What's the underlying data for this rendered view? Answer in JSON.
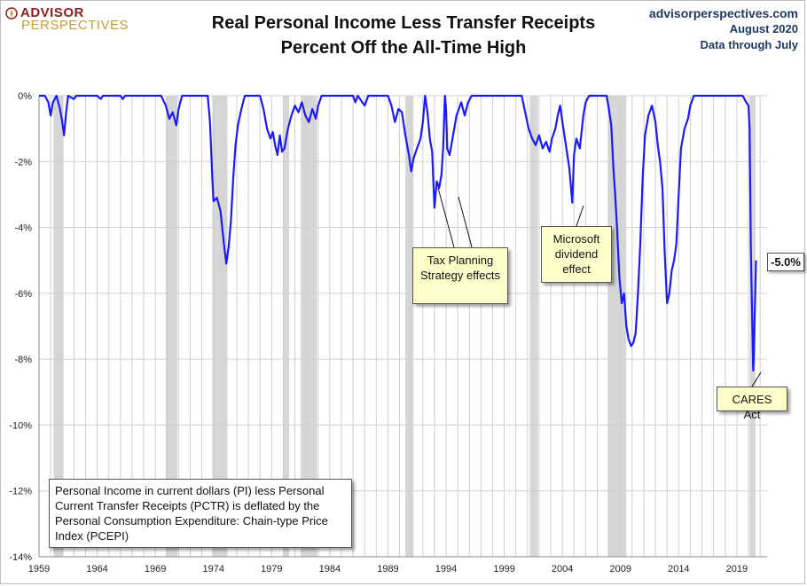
{
  "logo": {
    "line1": "ADVISOR",
    "line2": "PERSPECTIVES"
  },
  "header": {
    "title_line1": "Real Personal Income Less Transfer Receipts",
    "title_line2": "Percent Off the All-Time High"
  },
  "source": {
    "site": "advisorperspectives.com",
    "date": "August 2020",
    "data_note": "Data through July"
  },
  "colors": {
    "line": "#1a1aff",
    "recession": "#d6d6d6",
    "grid": "#cfcfcf",
    "note_bg": "#ffffcc"
  },
  "annotations": {
    "tax": "Tax Planning Strategy effects",
    "msft": "Microsoft dividend effect",
    "cares": "CARES Act",
    "last_value": "-5.0%",
    "definition": "Personal Income in current dollars  (PI) less Personal Current Transfer Receipts (PCTR) is deflated by the Personal Consumption Expenditure: Chain-type Price Index (PCEPI)"
  },
  "chart_data": {
    "type": "line",
    "title": "Real Personal Income Less Transfer Receipts",
    "subtitle": "Percent Off the All-Time High",
    "xlabel": "",
    "ylabel": "",
    "xlim": [
      1959,
      2021.6
    ],
    "ylim": [
      -14,
      0
    ],
    "x_ticks": [
      1959,
      1964,
      1969,
      1974,
      1979,
      1984,
      1989,
      1994,
      1999,
      2004,
      2009,
      2014,
      2019
    ],
    "y_ticks": [
      0,
      -2,
      -4,
      -6,
      -8,
      -10,
      -12,
      -14
    ],
    "y_tick_labels": [
      "0%",
      "-2%",
      "-4%",
      "-6%",
      "-8%",
      "-10%",
      "-12%",
      "-14%"
    ],
    "grid": true,
    "recessions": [
      [
        1960.25,
        1961.1
      ],
      [
        1969.9,
        1970.9
      ],
      [
        1973.9,
        1975.2
      ],
      [
        1980.0,
        1980.5
      ],
      [
        1981.5,
        1982.9
      ],
      [
        1990.5,
        1991.2
      ],
      [
        2001.2,
        2001.9
      ],
      [
        2007.9,
        2009.5
      ],
      [
        2020.1,
        2020.6
      ]
    ],
    "series": [
      {
        "values": [
          [
            1959.0,
            0
          ],
          [
            1959.5,
            0
          ],
          [
            1959.8,
            -0.2
          ],
          [
            1960.0,
            -0.6
          ],
          [
            1960.2,
            -0.2
          ],
          [
            1960.5,
            0
          ],
          [
            1960.8,
            -0.4
          ],
          [
            1961.0,
            -0.8
          ],
          [
            1961.15,
            -1.2
          ],
          [
            1961.3,
            -0.6
          ],
          [
            1961.5,
            0
          ],
          [
            1962.0,
            -0.1
          ],
          [
            1962.2,
            0
          ],
          [
            1964.0,
            0
          ],
          [
            1964.3,
            -0.1
          ],
          [
            1964.5,
            0
          ],
          [
            1966.0,
            0
          ],
          [
            1966.2,
            -0.1
          ],
          [
            1966.4,
            0
          ],
          [
            1969.5,
            0
          ],
          [
            1969.9,
            -0.3
          ],
          [
            1970.2,
            -0.7
          ],
          [
            1970.5,
            -0.5
          ],
          [
            1970.8,
            -0.9
          ],
          [
            1971.0,
            -0.4
          ],
          [
            1971.3,
            0
          ],
          [
            1973.5,
            0
          ],
          [
            1973.7,
            -0.8
          ],
          [
            1973.9,
            -2.5
          ],
          [
            1974.0,
            -3.2
          ],
          [
            1974.3,
            -3.1
          ],
          [
            1974.6,
            -3.5
          ],
          [
            1974.9,
            -4.5
          ],
          [
            1975.1,
            -5.1
          ],
          [
            1975.3,
            -4.6
          ],
          [
            1975.5,
            -3.8
          ],
          [
            1975.7,
            -2.5
          ],
          [
            1975.9,
            -1.5
          ],
          [
            1976.1,
            -0.9
          ],
          [
            1976.4,
            -0.4
          ],
          [
            1976.7,
            0
          ],
          [
            1978.0,
            0
          ],
          [
            1978.3,
            -0.4
          ],
          [
            1978.6,
            -1.0
          ],
          [
            1978.9,
            -1.3
          ],
          [
            1979.1,
            -1.1
          ],
          [
            1979.3,
            -1.5
          ],
          [
            1979.5,
            -1.8
          ],
          [
            1979.7,
            -1.2
          ],
          [
            1979.9,
            -1.7
          ],
          [
            1980.1,
            -1.6
          ],
          [
            1980.4,
            -1.0
          ],
          [
            1980.7,
            -0.6
          ],
          [
            1981.0,
            -0.3
          ],
          [
            1981.3,
            -0.5
          ],
          [
            1981.6,
            -0.2
          ],
          [
            1981.9,
            -0.6
          ],
          [
            1982.2,
            -0.8
          ],
          [
            1982.5,
            -0.4
          ],
          [
            1982.8,
            -0.7
          ],
          [
            1983.0,
            -0.3
          ],
          [
            1983.3,
            0
          ],
          [
            1986.0,
            0
          ],
          [
            1986.2,
            -0.2
          ],
          [
            1986.4,
            0
          ],
          [
            1987.0,
            -0.3
          ],
          [
            1987.3,
            0
          ],
          [
            1989.0,
            0
          ],
          [
            1989.3,
            -0.3
          ],
          [
            1989.6,
            -0.8
          ],
          [
            1989.9,
            -0.4
          ],
          [
            1990.2,
            -0.5
          ],
          [
            1990.5,
            -1.2
          ],
          [
            1990.8,
            -1.8
          ],
          [
            1991.0,
            -2.3
          ],
          [
            1991.2,
            -1.9
          ],
          [
            1991.5,
            -1.6
          ],
          [
            1991.8,
            -1.3
          ],
          [
            1992.0,
            -0.8
          ],
          [
            1992.2,
            0
          ],
          [
            1992.4,
            -0.5
          ],
          [
            1992.6,
            -1.3
          ],
          [
            1992.8,
            -1.7
          ],
          [
            1993.0,
            -3.4
          ],
          [
            1993.2,
            -2.6
          ],
          [
            1993.4,
            -2.8
          ],
          [
            1993.6,
            -2.4
          ],
          [
            1993.75,
            -1.6
          ],
          [
            1993.9,
            0
          ],
          [
            1994.0,
            -0.4
          ],
          [
            1994.1,
            -1.6
          ],
          [
            1994.3,
            -1.8
          ],
          [
            1994.6,
            -1.2
          ],
          [
            1994.9,
            -0.6
          ],
          [
            1995.3,
            -0.2
          ],
          [
            1995.6,
            -0.6
          ],
          [
            1995.9,
            -0.2
          ],
          [
            1996.2,
            0
          ],
          [
            2000.5,
            0
          ],
          [
            2000.8,
            -0.5
          ],
          [
            2001.1,
            -1.0
          ],
          [
            2001.4,
            -1.3
          ],
          [
            2001.7,
            -1.5
          ],
          [
            2002.0,
            -1.2
          ],
          [
            2002.3,
            -1.6
          ],
          [
            2002.6,
            -1.4
          ],
          [
            2002.9,
            -1.7
          ],
          [
            2003.1,
            -1.3
          ],
          [
            2003.4,
            -1.0
          ],
          [
            2003.6,
            -0.6
          ],
          [
            2003.8,
            -0.3
          ],
          [
            2004.0,
            -0.8
          ],
          [
            2004.3,
            -1.5
          ],
          [
            2004.6,
            -2.2
          ],
          [
            2004.85,
            -3.25
          ],
          [
            2005.0,
            -1.8
          ],
          [
            2005.2,
            -1.3
          ],
          [
            2005.5,
            -1.6
          ],
          [
            2005.8,
            -0.6
          ],
          [
            2006.0,
            -0.2
          ],
          [
            2006.3,
            0
          ],
          [
            2007.8,
            0
          ],
          [
            2008.0,
            -0.4
          ],
          [
            2008.2,
            -0.9
          ],
          [
            2008.4,
            -2.3
          ],
          [
            2008.5,
            -2.8
          ],
          [
            2008.7,
            -4.0
          ],
          [
            2008.9,
            -5.5
          ],
          [
            2009.1,
            -6.3
          ],
          [
            2009.3,
            -6.0
          ],
          [
            2009.5,
            -7.0
          ],
          [
            2009.7,
            -7.4
          ],
          [
            2009.9,
            -7.6
          ],
          [
            2010.1,
            -7.5
          ],
          [
            2010.3,
            -7.2
          ],
          [
            2010.5,
            -6.0
          ],
          [
            2010.7,
            -4.5
          ],
          [
            2010.9,
            -2.5
          ],
          [
            2011.1,
            -1.2
          ],
          [
            2011.4,
            -0.6
          ],
          [
            2011.7,
            -0.3
          ],
          [
            2012.0,
            -0.8
          ],
          [
            2012.2,
            -1.5
          ],
          [
            2012.4,
            -2.0
          ],
          [
            2012.6,
            -2.8
          ],
          [
            2012.8,
            -4.8
          ],
          [
            2013.0,
            -6.3
          ],
          [
            2013.2,
            -6.0
          ],
          [
            2013.4,
            -5.3
          ],
          [
            2013.6,
            -5.0
          ],
          [
            2013.8,
            -4.5
          ],
          [
            2014.0,
            -3.0
          ],
          [
            2014.2,
            -1.6
          ],
          [
            2014.5,
            -1.0
          ],
          [
            2014.8,
            -0.7
          ],
          [
            2015.0,
            -0.3
          ],
          [
            2015.3,
            0
          ],
          [
            2019.5,
            0
          ],
          [
            2019.8,
            -0.2
          ],
          [
            2020.0,
            -0.3
          ],
          [
            2020.1,
            -1.0
          ],
          [
            2020.2,
            -4.5
          ],
          [
            2020.3,
            -6.5
          ],
          [
            2020.4,
            -8.35
          ],
          [
            2020.45,
            -8.0
          ],
          [
            2020.55,
            -6.5
          ],
          [
            2020.65,
            -5.0
          ]
        ]
      }
    ]
  }
}
